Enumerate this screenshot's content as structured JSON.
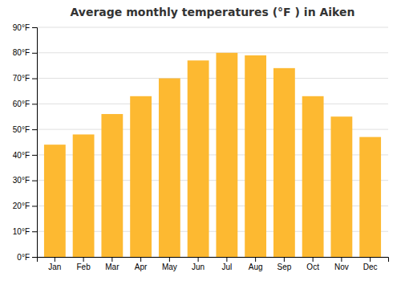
{
  "chart_data": {
    "type": "bar",
    "title": "Average monthly temperatures (°F ) in Aiken",
    "categories": [
      "Jan",
      "Feb",
      "Mar",
      "Apr",
      "May",
      "Jun",
      "Jul",
      "Aug",
      "Sep",
      "Oct",
      "Nov",
      "Dec"
    ],
    "values": [
      44,
      48,
      56,
      63,
      70,
      77,
      80,
      79,
      74,
      63,
      55,
      47
    ],
    "color": "#FDB931",
    "ylim": [
      0,
      90
    ],
    "yticks": [
      {
        "value": 0,
        "label": "0°F"
      },
      {
        "value": 10,
        "label": "10°F"
      },
      {
        "value": 20,
        "label": "20°F"
      },
      {
        "value": 30,
        "label": "30°F"
      },
      {
        "value": 40,
        "label": "40°F"
      },
      {
        "value": 50,
        "label": "50°F"
      },
      {
        "value": 60,
        "label": "60°F"
      },
      {
        "value": 70,
        "label": "70°F"
      },
      {
        "value": 80,
        "label": "80°F"
      },
      {
        "value": 90,
        "label": "90°F"
      }
    ],
    "grid": true
  }
}
